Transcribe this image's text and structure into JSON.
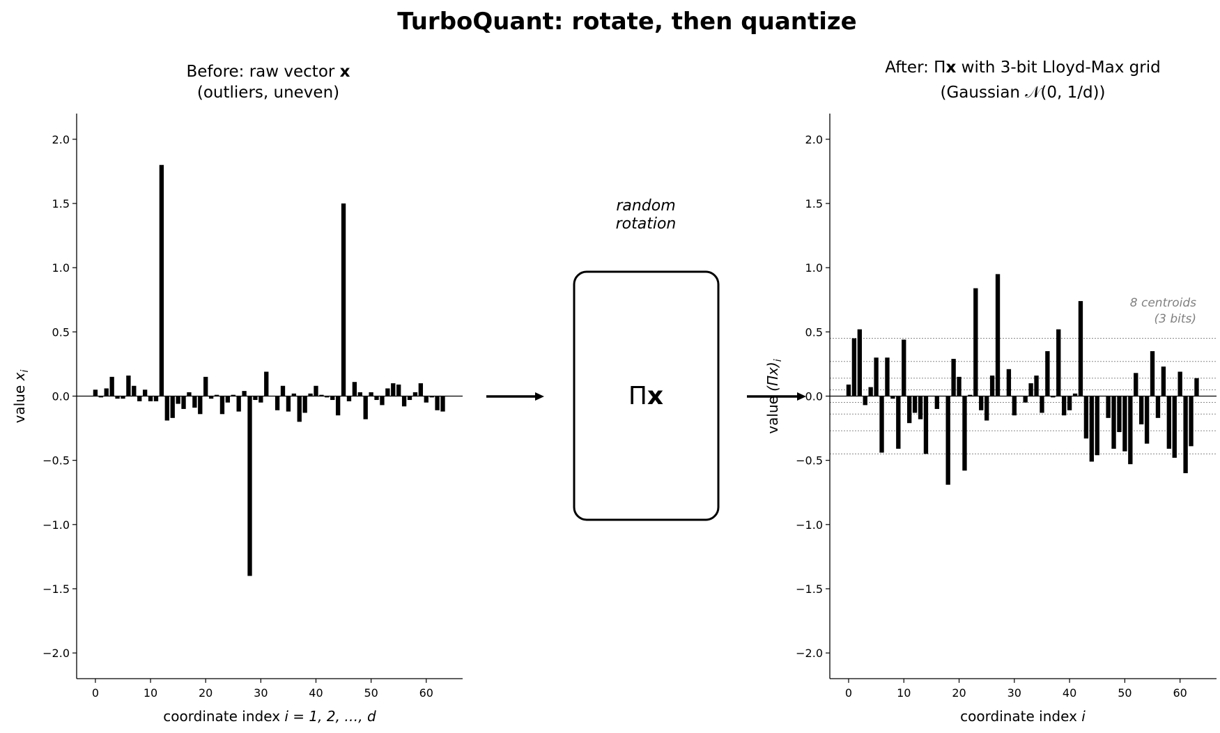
{
  "title": "TurboQuant: rotate, then quantize",
  "colors": {
    "bars": "#000000",
    "centroid_lines": "#888888",
    "annotation": "#808080"
  },
  "middle": {
    "caption_line1": "random",
    "caption_line2": "rotation",
    "box_label_pi": "Π",
    "box_label_x": "x"
  },
  "chart_data": [
    {
      "type": "bar",
      "title_line1_prefix": "Before: raw vector ",
      "title_line1_bold": "x",
      "title_line2": "(outliers, uneven)",
      "xlabel_prefix": "coordinate index  ",
      "xlabel_math": "i = 1, 2, …, d",
      "ylabel_prefix": "value  ",
      "ylabel_math": "x",
      "ylabel_sub": "i",
      "xlim": [
        -3.4,
        66.6
      ],
      "ylim": [
        -2.2,
        2.2
      ],
      "xticks": [
        "0",
        "10",
        "20",
        "30",
        "40",
        "50",
        "60"
      ],
      "yticks": [
        "−2.0",
        "−1.5",
        "−1.0",
        "−0.5",
        "0.0",
        "0.5",
        "1.0",
        "1.5",
        "2.0"
      ],
      "grid": false,
      "x": "0..63",
      "values": [
        0.05,
        -0.01,
        0.06,
        0.15,
        -0.02,
        -0.02,
        0.16,
        0.08,
        -0.04,
        0.05,
        -0.04,
        -0.04,
        1.8,
        -0.19,
        -0.17,
        -0.06,
        -0.1,
        0.03,
        -0.09,
        -0.14,
        0.15,
        -0.02,
        0.01,
        -0.14,
        -0.05,
        0.01,
        -0.12,
        0.04,
        -1.4,
        -0.03,
        -0.05,
        0.19,
        0.0,
        -0.11,
        0.08,
        -0.12,
        0.02,
        -0.2,
        -0.13,
        0.02,
        0.08,
        0.01,
        -0.01,
        -0.03,
        -0.15,
        1.5,
        -0.04,
        0.11,
        0.03,
        -0.18,
        0.03,
        -0.03,
        -0.07,
        0.06,
        0.1,
        0.09,
        -0.08,
        -0.03,
        0.03,
        0.1,
        -0.05,
        -0.01,
        -0.11,
        -0.12
      ]
    },
    {
      "type": "bar",
      "title_line1_prefix": "After: Π",
      "title_line1_bold": "x",
      "title_line1_suffix": " with 3-bit Lloyd-Max grid",
      "title_line2": "(Gaussian 𝒩(0, 1/d))",
      "xlabel_prefix": "coordinate index  ",
      "xlabel_math": "i",
      "ylabel_prefix": "value  ",
      "ylabel_math": "(Πx)",
      "ylabel_sub": "i",
      "xlim": [
        -3.4,
        66.6
      ],
      "ylim": [
        -2.2,
        2.2
      ],
      "xticks": [
        "0",
        "10",
        "20",
        "30",
        "40",
        "50",
        "60"
      ],
      "yticks": [
        "−2.0",
        "−1.5",
        "−1.0",
        "−0.5",
        "0.0",
        "0.5",
        "1.0",
        "1.5",
        "2.0"
      ],
      "grid": false,
      "x": "0..63",
      "values": [
        0.09,
        0.45,
        0.52,
        -0.07,
        0.07,
        0.3,
        -0.44,
        0.3,
        -0.02,
        -0.41,
        0.44,
        -0.21,
        -0.13,
        -0.18,
        -0.45,
        0.0,
        -0.1,
        0.0,
        -0.69,
        0.29,
        0.15,
        -0.58,
        0.01,
        0.84,
        -0.11,
        -0.19,
        0.16,
        0.95,
        0.0,
        0.21,
        -0.15,
        0.0,
        -0.05,
        0.1,
        0.16,
        -0.13,
        0.35,
        -0.01,
        0.52,
        -0.15,
        -0.11,
        0.02,
        0.74,
        -0.33,
        -0.51,
        -0.46,
        0.0,
        -0.17,
        -0.41,
        -0.28,
        -0.43,
        -0.53,
        0.18,
        -0.22,
        -0.37,
        0.35,
        -0.17,
        0.23,
        -0.41,
        -0.48,
        0.19,
        -0.6,
        -0.39,
        0.14
      ],
      "centroids": [
        -0.45,
        -0.27,
        -0.14,
        -0.049,
        0.049,
        0.14,
        0.27,
        0.45
      ],
      "annotation_line1": "8 centroids",
      "annotation_line2": "(3 bits)"
    }
  ]
}
